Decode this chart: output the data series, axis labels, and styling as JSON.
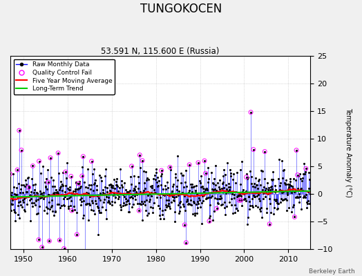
{
  "title": "TUNGOKOCEN",
  "subtitle": "53.591 N, 115.600 E (Russia)",
  "ylabel": "Temperature Anomaly (°C)",
  "credit": "Berkeley Earth",
  "year_start": 1945,
  "year_end": 2015,
  "ylim": [
    -10,
    25
  ],
  "yticks": [
    -10,
    -5,
    0,
    5,
    10,
    15,
    20,
    25
  ],
  "xticks": [
    1950,
    1960,
    1970,
    1980,
    1990,
    2000,
    2010
  ],
  "raw_color": "#0000ff",
  "qc_color": "#ff00ff",
  "moving_avg_color": "#ff0000",
  "trend_color": "#00cc00",
  "bg_color": "#f0f0f0",
  "plot_bg": "#ffffff",
  "seed": 42
}
